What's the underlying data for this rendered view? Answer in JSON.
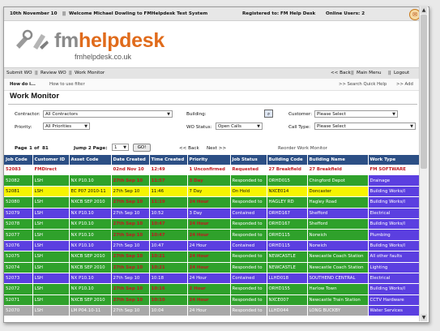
{
  "topbar": {
    "date": "10th November 10",
    "sep": "||",
    "welcome": "Welcome Michael Dowling to FMHelpdesk Test System",
    "registered": "Registered to: FM Help Desk",
    "online": "Online Users: 2"
  },
  "logo": {
    "fm": "fm",
    "helpdesk": "helpdesk",
    "url": "fmhelpdesk.co.uk"
  },
  "nav": {
    "submit": "Submit WO",
    "review": "Review WO",
    "monitor": "Work Monitor",
    "back": "<< Back",
    "main_menu": "Main Menu",
    "logout": "Logout",
    "sep": "||"
  },
  "subnav": {
    "how_do_i": "How do i...",
    "how_filter": "How to use filter",
    "quick_help": ">> Search Quick Help",
    "add": ">> Add"
  },
  "page_title": "Work Monitor",
  "filters": {
    "contractor_label": "Contractor:",
    "contractor_value": "All Contractors",
    "building_label": "Building:",
    "customer_label": "Customer:",
    "customer_value": "Please Select",
    "priority_label": "Priority:",
    "priority_value": "All Priorities",
    "wo_status_label": "WO Status:",
    "wo_status_value": "Open Calls",
    "call_type_label": "Call Type:",
    "call_type_value": "Please Select"
  },
  "paging": {
    "page_label": "Page",
    "page_num": "1",
    "of_label": "of",
    "total": "81",
    "jump_label": "Jump 2 Page:",
    "jump_value": "1",
    "go": "GO!",
    "back": "<< Back",
    "next": "Next >>",
    "reorder": "Reorder Work Monitor"
  },
  "table": {
    "headers": [
      "Job Code",
      "Customer ID",
      "Asset Code",
      "Date Created",
      "Time Created",
      "Priority",
      "Job Status",
      "Building Code",
      "Building Name",
      "Work Type"
    ],
    "rows": [
      {
        "style": "white",
        "cells": [
          "52083",
          "FMDirect",
          "",
          "02nd Nov 10",
          "12:49",
          "1 Unconfirmed",
          "Requested",
          "27 Breakfield",
          "27 Breakfield",
          "FM SOFTWARE"
        ]
      },
      {
        "style": "green",
        "cells": [
          "52082",
          "LSH",
          "NX P10.10",
          "27th Sep 10",
          "11:57",
          "3 Day",
          "Responded to",
          "ORHD015",
          "Chingford Depot",
          "Drainage"
        ]
      },
      {
        "style": "yellow",
        "cells": [
          "52081",
          "LSH",
          "EC P07 2010-11",
          "27th Sep 10",
          "11:46",
          "7 Day",
          "On Hold",
          "NXCE014",
          "Doncaster",
          "Building Works/I"
        ]
      },
      {
        "style": "green",
        "cells": [
          "52080",
          "LSH",
          "NXCB SEP 2010",
          "27th Sep 10",
          "11:19",
          "24 Hour",
          "Responded to",
          "HAGLEY RD",
          "Hagley Road",
          "Building Works/I"
        ]
      },
      {
        "style": "purple",
        "cells": [
          "52079",
          "LSH",
          "NX P10.10",
          "27th Sep 10",
          "10:52",
          "3 Day",
          "Contained",
          "ORHD167",
          "Shefford",
          "Electrical"
        ]
      },
      {
        "style": "green",
        "cells": [
          "52078",
          "LSH",
          "NX P10.10",
          "27th Sep 10",
          "10:47",
          "24 Hour",
          "Responded to",
          "ORHD167",
          "Shefford",
          "Building Works/I"
        ]
      },
      {
        "style": "green",
        "cells": [
          "52077",
          "LSH",
          "NX P10.10",
          "27th Sep 10",
          "10:47",
          "24 Hour",
          "Responded to",
          "ORHD115",
          "Norwich",
          "Plumbing"
        ]
      },
      {
        "style": "purple",
        "cells": [
          "52076",
          "LSH",
          "NX P10.10",
          "27th Sep 10",
          "10:47",
          "24 Hour",
          "Contained",
          "ORHD115",
          "Norwich",
          "Building Works/I"
        ]
      },
      {
        "style": "green",
        "cells": [
          "52075",
          "LSH",
          "NXCB SEP 2010",
          "27th Sep 10",
          "10:21",
          "24 Hour",
          "Responded to",
          "NEWCASTLE",
          "Newcastle Coach Station",
          "All other faults"
        ]
      },
      {
        "style": "green",
        "cells": [
          "52074",
          "LSH",
          "NXCB SEP 2010",
          "27th Sep 10",
          "10:21",
          "24 Hour",
          "Responded to",
          "NEWCASTLE",
          "Newcastle Coach Station",
          "Lighting"
        ]
      },
      {
        "style": "purple",
        "cells": [
          "52073",
          "LSH",
          "NX P10.10",
          "27th Sep 10",
          "10:18",
          "24 Hour",
          "Contained",
          "LLHD018",
          "SOUTHEND CENTRAL",
          "Electrical"
        ]
      },
      {
        "style": "green",
        "cells": [
          "52072",
          "LSH",
          "NX P10.10",
          "27th Sep 10",
          "10:16",
          "2 Hour",
          "Responded to",
          "ORHD155",
          "Harlow Town",
          "Building Works/I"
        ]
      },
      {
        "style": "green",
        "cells": [
          "52071",
          "LSH",
          "NXCB SEP 2010",
          "27th Sep 10",
          "10:10",
          "24 Hour",
          "Responded to",
          "NXCE007",
          "Newcastle Train Station",
          "CCTV Hardware"
        ]
      },
      {
        "style": "gray",
        "cells": [
          "52070",
          "LSH",
          "LM P04.10-11",
          "27th Sep 10",
          "10:04",
          "24 Hour",
          "Responded to",
          "LLHD044",
          "LONG BUCKBY",
          "Water Services"
        ]
      }
    ]
  }
}
